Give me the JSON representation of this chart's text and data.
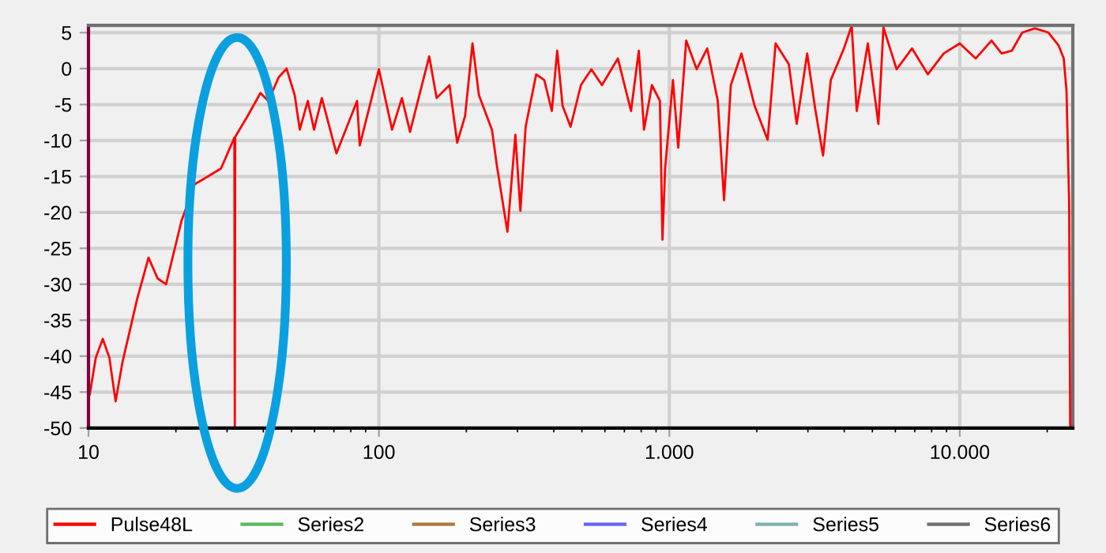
{
  "chart_data": {
    "type": "line",
    "series": [
      {
        "x": [
          10.1,
          10.6,
          11.2,
          11.8,
          12.4,
          13.1,
          14.7,
          16.1,
          17.3,
          18.5,
          20.9,
          23.2,
          25.8,
          28.6,
          31.8,
          31.9,
          32.0,
          35.2,
          39.1,
          41.6,
          45.2,
          48.1,
          51.3,
          53.4,
          56.9,
          59.8,
          63.6,
          71.4,
          84.1,
          85.9,
          100,
          111,
          120,
          128,
          149,
          158,
          175,
          186,
          198,
          210,
          221,
          245,
          255,
          277,
          295,
          307,
          320,
          348,
          371,
          394,
          411,
          429,
          457,
          496,
          539,
          586,
          665,
          738,
          785,
          818,
          871,
          928,
          947,
          967,
          1029,
          1073,
          1143,
          1242,
          1350,
          1468,
          1543,
          1628,
          1771,
          1966,
          2180,
          2322,
          2578,
          2745,
          2982,
          3178,
          3382,
          3596,
          3992,
          4244,
          4417,
          4824,
          5245,
          5460,
          6061,
          6846,
          7760,
          8806,
          10000,
          11340,
          12860,
          13930,
          15120,
          16400,
          18150,
          20200,
          21900,
          22800,
          23300,
          23800,
          24000
        ],
        "name": "Pulse48L",
        "color": "#ff0000",
        "values": [
          -45.3,
          -40.2,
          -37.6,
          -40.2,
          -46.3,
          -40.8,
          -32.1,
          -26.3,
          -29.2,
          -30.0,
          -21.2,
          -16.1,
          -15.0,
          -13.9,
          -9.6,
          -50,
          -9.5,
          -6.7,
          -3.4,
          -4.5,
          -1.2,
          0.0,
          -3.7,
          -8.5,
          -4.5,
          -8.5,
          -4.1,
          -11.8,
          -4.5,
          -10.7,
          -0.1,
          -8.5,
          -4.1,
          -8.8,
          1.7,
          -4.1,
          -2.3,
          -10.3,
          -6.6,
          3.5,
          -3.7,
          -8.5,
          -13.6,
          -22.7,
          -9.2,
          -19.8,
          -8.1,
          -0.8,
          -1.6,
          -5.9,
          2.5,
          -5.2,
          -8.1,
          -2.3,
          -0.1,
          -2.3,
          1.4,
          -5.9,
          2.5,
          -8.5,
          -2.3,
          -4.5,
          -23.8,
          -13.9,
          -1.6,
          -11.0,
          3.9,
          -0.1,
          2.8,
          -4.5,
          -18.3,
          -2.3,
          2.1,
          -5.2,
          -9.9,
          3.5,
          0.6,
          -7.7,
          2.1,
          -5.6,
          -12.1,
          -1.6,
          2.8,
          6.0,
          -5.9,
          3.5,
          -7.7,
          5.7,
          -0.1,
          2.8,
          -0.8,
          2.1,
          3.5,
          1.4,
          3.9,
          2.1,
          2.5,
          5.0,
          5.6,
          5.0,
          3.2,
          1.4,
          -3.0,
          -18.7,
          -50
        ]
      },
      {
        "name": "Series2",
        "color": "#5cb85c"
      },
      {
        "name": "Series3",
        "color": "#b07840"
      },
      {
        "name": "Series4",
        "color": "#6666ff"
      },
      {
        "name": "Series5",
        "color": "#80b0b0"
      },
      {
        "name": "Series6",
        "color": "#707070"
      }
    ],
    "log": "x",
    "xlim": [
      10,
      24500
    ],
    "xticks": [
      10,
      100,
      {
        "value": 1000,
        "label": "1.000"
      },
      {
        "value": 10000,
        "label": "10.000"
      }
    ],
    "ylim": [
      -50,
      6
    ],
    "yticks": [
      5,
      0,
      -5,
      -10,
      -15,
      -20,
      -25,
      -30,
      -35,
      -40,
      -45,
      -50
    ],
    "grid": true,
    "legend": "bottom",
    "marker": "none",
    "line_style": "solid"
  }
}
